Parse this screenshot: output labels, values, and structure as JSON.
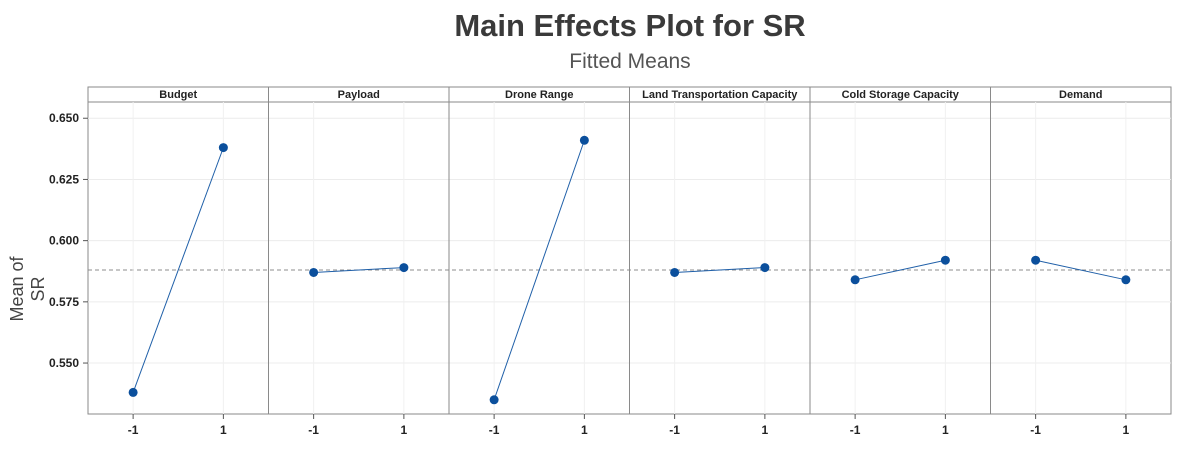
{
  "chart_data": {
    "type": "line",
    "title": "Main Effects Plot for SR",
    "subtitle": "Fitted Means",
    "ylabel": "Mean of SR",
    "ylim": [
      0.53,
      0.655
    ],
    "yticks": [
      "0.650",
      "0.625",
      "0.600",
      "0.575",
      "0.550"
    ],
    "ytick_values": [
      0.65,
      0.625,
      0.6,
      0.575,
      0.55
    ],
    "reference_mean": 0.588,
    "x_levels": [
      "-1",
      "1"
    ],
    "grid": true,
    "line_color": "#1f5fa8",
    "point_color": "#0b4f9c",
    "panels": [
      {
        "factor": "Budget",
        "values": [
          0.538,
          0.638
        ]
      },
      {
        "factor": "Payload",
        "values": [
          0.587,
          0.589
        ]
      },
      {
        "factor": "Drone Range",
        "values": [
          0.535,
          0.641
        ]
      },
      {
        "factor": "Land Transportation Capacity",
        "values": [
          0.587,
          0.589
        ]
      },
      {
        "factor": "Cold Storage Capacity",
        "values": [
          0.584,
          0.592
        ]
      },
      {
        "factor": "Demand",
        "values": [
          0.592,
          0.584
        ]
      }
    ]
  }
}
